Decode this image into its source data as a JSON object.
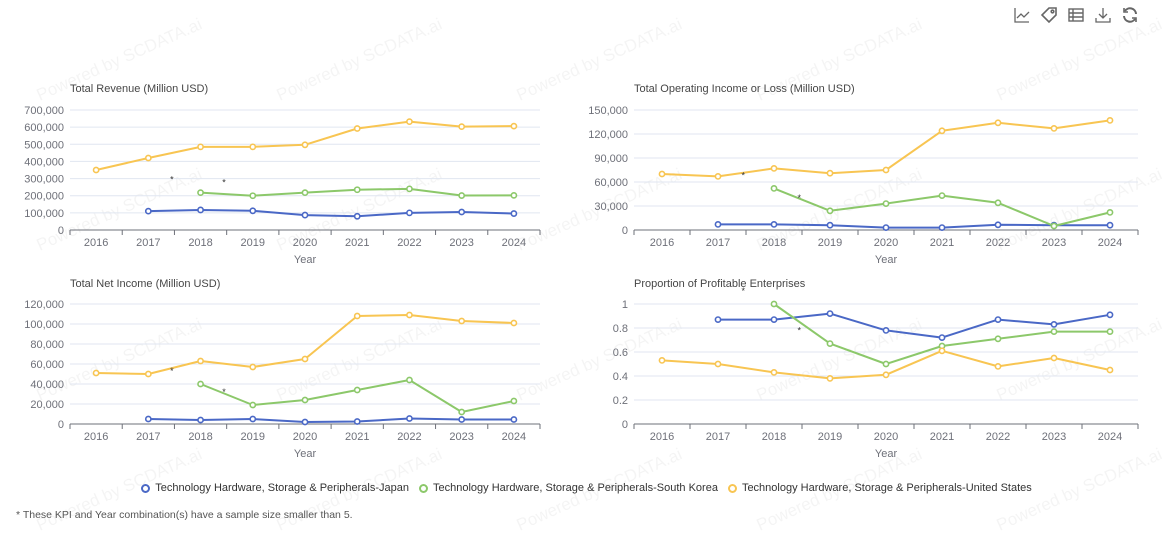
{
  "toolbar": {
    "items": [
      {
        "name": "line-chart-icon",
        "label": "Switch to line chart"
      },
      {
        "name": "tag-icon",
        "label": "Labels"
      },
      {
        "name": "table-icon",
        "label": "Data view"
      },
      {
        "name": "download-icon",
        "label": "Save as image"
      },
      {
        "name": "refresh-icon",
        "label": "Restore"
      }
    ]
  },
  "watermark": "Powered by SCDATA.ai",
  "colors": {
    "japan": "#4a68c6",
    "south_korea": "#8cc86a",
    "united_states": "#f8c552",
    "grid": "#e0e6f1",
    "axis": "#6e7079",
    "text": "#6e7079"
  },
  "legend": [
    {
      "key": "japan",
      "label": "Technology Hardware, Storage & Peripherals-Japan"
    },
    {
      "key": "south_korea",
      "label": "Technology Hardware, Storage & Peripherals-South Korea"
    },
    {
      "key": "united_states",
      "label": "Technology Hardware, Storage & Peripherals-United States"
    }
  ],
  "footnote": "* These KPI and Year combination(s) have a sample size smaller than 5.",
  "chart_data": [
    {
      "type": "line",
      "title": "Total Revenue (Million USD)",
      "xlabel": "Year",
      "ylabel": "",
      "categories": [
        "2016",
        "2017",
        "2018",
        "2019",
        "2020",
        "2021",
        "2022",
        "2023",
        "2024"
      ],
      "ylim": [
        0,
        700000
      ],
      "yticks": [
        0,
        100000,
        200000,
        300000,
        400000,
        500000,
        600000,
        700000
      ],
      "ytick_labels": [
        "0",
        "100,000",
        "200,000",
        "300,000",
        "400,000",
        "500,000",
        "600,000",
        "700,000"
      ],
      "grid": true,
      "asterisks": [
        {
          "series": "south_korea",
          "categories": [
            "2018",
            "2019"
          ]
        }
      ],
      "series": [
        {
          "key": "japan",
          "name": "Technology Hardware, Storage & Peripherals-Japan",
          "values": [
            null,
            110000,
            117000,
            112000,
            87000,
            80000,
            100000,
            105000,
            96000
          ]
        },
        {
          "key": "south_korea",
          "name": "Technology Hardware, Storage & Peripherals-South Korea",
          "values": [
            null,
            null,
            218000,
            200000,
            218000,
            235000,
            240000,
            201000,
            202000
          ]
        },
        {
          "key": "united_states",
          "name": "Technology Hardware, Storage & Peripherals-United States",
          "values": [
            350000,
            420000,
            485000,
            485000,
            497000,
            592000,
            632000,
            603000,
            606000
          ]
        }
      ]
    },
    {
      "type": "line",
      "title": "Total Operating Income or Loss (Million USD)",
      "xlabel": "Year",
      "ylabel": "",
      "categories": [
        "2016",
        "2017",
        "2018",
        "2019",
        "2020",
        "2021",
        "2022",
        "2023",
        "2024"
      ],
      "ylim": [
        0,
        150000
      ],
      "yticks": [
        0,
        30000,
        60000,
        90000,
        120000,
        150000
      ],
      "ytick_labels": [
        "0",
        "30,000",
        "60,000",
        "90,000",
        "120,000",
        "150,000"
      ],
      "grid": true,
      "asterisks": [
        {
          "series": "south_korea",
          "categories": [
            "2018",
            "2019"
          ]
        }
      ],
      "series": [
        {
          "key": "japan",
          "name": "Technology Hardware, Storage & Peripherals-Japan",
          "values": [
            null,
            7000,
            7000,
            6000,
            3000,
            3000,
            6500,
            6000,
            6000
          ]
        },
        {
          "key": "south_korea",
          "name": "Technology Hardware, Storage & Peripherals-South Korea",
          "values": [
            null,
            null,
            52000,
            24000,
            33000,
            43000,
            34000,
            5000,
            22000
          ]
        },
        {
          "key": "united_states",
          "name": "Technology Hardware, Storage & Peripherals-United States",
          "values": [
            70000,
            67000,
            77000,
            71000,
            75000,
            124000,
            134000,
            127000,
            137000
          ]
        }
      ]
    },
    {
      "type": "line",
      "title": "Total Net Income (Million USD)",
      "xlabel": "Year",
      "ylabel": "",
      "categories": [
        "2016",
        "2017",
        "2018",
        "2019",
        "2020",
        "2021",
        "2022",
        "2023",
        "2024"
      ],
      "ylim": [
        0,
        120000
      ],
      "yticks": [
        0,
        20000,
        40000,
        60000,
        80000,
        100000,
        120000
      ],
      "ytick_labels": [
        "0",
        "20,000",
        "40,000",
        "60,000",
        "80,000",
        "100,000",
        "120,000"
      ],
      "grid": true,
      "asterisks": [
        {
          "series": "south_korea",
          "categories": [
            "2018",
            "2019"
          ]
        }
      ],
      "series": [
        {
          "key": "japan",
          "name": "Technology Hardware, Storage & Peripherals-Japan",
          "values": [
            null,
            5000,
            4000,
            5000,
            2000,
            2500,
            5500,
            4500,
            4500
          ]
        },
        {
          "key": "south_korea",
          "name": "Technology Hardware, Storage & Peripherals-South Korea",
          "values": [
            null,
            null,
            40000,
            19000,
            24000,
            34000,
            44000,
            12000,
            23000
          ]
        },
        {
          "key": "united_states",
          "name": "Technology Hardware, Storage & Peripherals-United States",
          "values": [
            51000,
            50000,
            63000,
            57000,
            65000,
            108000,
            109000,
            103000,
            101000
          ]
        }
      ]
    },
    {
      "type": "line",
      "title": "Proportion of Profitable Enterprises",
      "xlabel": "Year",
      "ylabel": "",
      "categories": [
        "2016",
        "2017",
        "2018",
        "2019",
        "2020",
        "2021",
        "2022",
        "2023",
        "2024"
      ],
      "ylim": [
        0,
        1
      ],
      "yticks": [
        0,
        0.2,
        0.4,
        0.6,
        0.8,
        1
      ],
      "ytick_labels": [
        "0",
        "0.2",
        "0.4",
        "0.6",
        "0.8",
        "1"
      ],
      "grid": true,
      "asterisks": [
        {
          "series": "south_korea",
          "categories": [
            "2018",
            "2019"
          ]
        }
      ],
      "series": [
        {
          "key": "japan",
          "name": "Technology Hardware, Storage & Peripherals-Japan",
          "values": [
            null,
            0.87,
            0.87,
            0.92,
            0.78,
            0.72,
            0.87,
            0.83,
            0.91
          ]
        },
        {
          "key": "south_korea",
          "name": "Technology Hardware, Storage & Peripherals-South Korea",
          "values": [
            null,
            null,
            1.0,
            0.67,
            0.5,
            0.65,
            0.71,
            0.77,
            0.77
          ]
        },
        {
          "key": "united_states",
          "name": "Technology Hardware, Storage & Peripherals-United States",
          "values": [
            0.53,
            0.5,
            0.43,
            0.38,
            0.41,
            0.61,
            0.48,
            0.55,
            0.45
          ]
        }
      ]
    }
  ]
}
